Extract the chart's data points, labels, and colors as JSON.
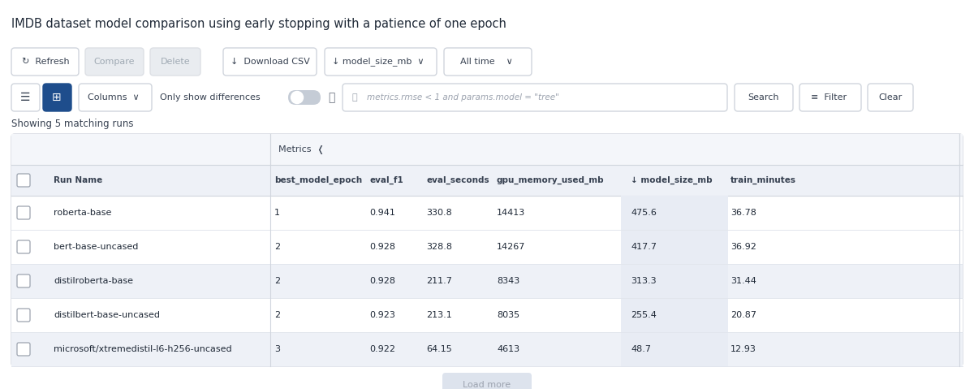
{
  "title": "IMDB dataset model comparison using early stopping with a patience of one epoch",
  "bg_color": "#f8f9fa",
  "showing_text": "Showing 5 matching runs",
  "metrics_label": "Metrics  ❬",
  "search_placeholder": "metrics.rmse < 1 and params.model = \"tree\"",
  "columns": [
    "Run Name",
    "best_model_epoch",
    "eval_f1",
    "eval_seconds",
    "gpu_memory_used_mb",
    "↓ model_size_mb",
    "train_minutes"
  ],
  "rows": [
    [
      "roberta-base",
      "1",
      "0.941",
      "330.8",
      "14413",
      "475.6",
      "36.78"
    ],
    [
      "bert-base-uncased",
      "2",
      "0.928",
      "328.8",
      "14267",
      "417.7",
      "36.92"
    ],
    [
      "distilroberta-base",
      "2",
      "0.928",
      "211.7",
      "8343",
      "313.3",
      "31.44"
    ],
    [
      "distilbert-base-uncased",
      "2",
      "0.923",
      "213.1",
      "8035",
      "255.4",
      "20.87"
    ],
    [
      "microsoft/xtremedistil-l6-h256-uncased",
      "3",
      "0.922",
      "64.15",
      "4613",
      "48.7",
      "12.93"
    ]
  ],
  "row_alt_colors": [
    "#ffffff",
    "#ffffff",
    "#eef1f7",
    "#ffffff",
    "#eef1f7"
  ],
  "table_bg": "#ffffff",
  "header_bg": "#eef1f7",
  "metrics_row_bg": "#f4f6fa",
  "border_color": "#d0d5dd",
  "separator_color": "#e2e6ed",
  "text_dark": "#1f2937",
  "text_mid": "#374151",
  "text_light": "#9ca3af",
  "btn_border": "#d0d5dd",
  "btn_bg": "#ffffff",
  "btn_disabled_bg": "#e9ecf0",
  "btn_disabled_text": "#a0aab4",
  "active_icon_bg": "#1e4d8c",
  "toggle_bg": "#c5ccd6",
  "load_more_bg": "#dde3ed",
  "load_more_text": "#9ca3af",
  "col_model_size_highlight": "#eef1f7"
}
